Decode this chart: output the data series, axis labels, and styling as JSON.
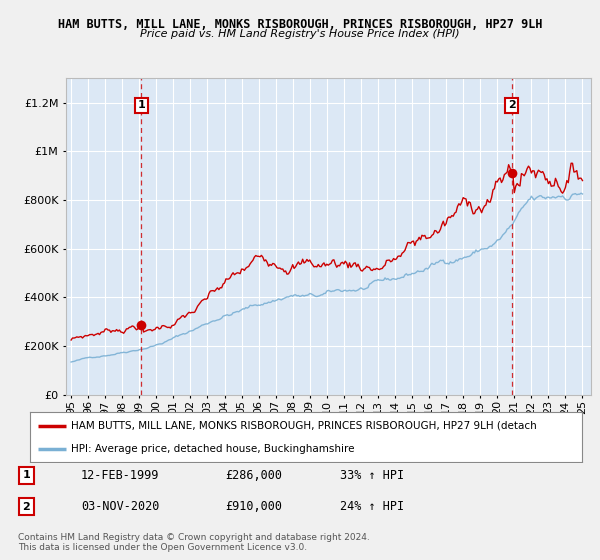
{
  "title1": "HAM BUTTS, MILL LANE, MONKS RISBOROUGH, PRINCES RISBOROUGH, HP27 9LH",
  "title2": "Price paid vs. HM Land Registry's House Price Index (HPI)",
  "legend_line1": "HAM BUTTS, MILL LANE, MONKS RISBOROUGH, PRINCES RISBOROUGH, HP27 9LH (detach",
  "legend_line2": "HPI: Average price, detached house, Buckinghamshire",
  "annotation1": {
    "num": "1",
    "date": "12-FEB-1999",
    "price": "£286,000",
    "hpi": "33% ↑ HPI",
    "x": 1999.12
  },
  "annotation2": {
    "num": "2",
    "date": "03-NOV-2020",
    "price": "£910,000",
    "hpi": "24% ↑ HPI",
    "x": 2020.84
  },
  "footer1": "Contains HM Land Registry data © Crown copyright and database right 2024.",
  "footer2": "This data is licensed under the Open Government Licence v3.0.",
  "red_color": "#cc0000",
  "blue_color": "#7ab0d4",
  "plot_bg": "#dce8f5",
  "background_color": "#f0f0f0",
  "ylim": [
    0,
    1300000
  ],
  "xlim_start": 1994.7,
  "xlim_end": 2025.5,
  "sale1_x": 1999.12,
  "sale1_y": 286000,
  "sale2_x": 2020.84,
  "sale2_y": 910000
}
